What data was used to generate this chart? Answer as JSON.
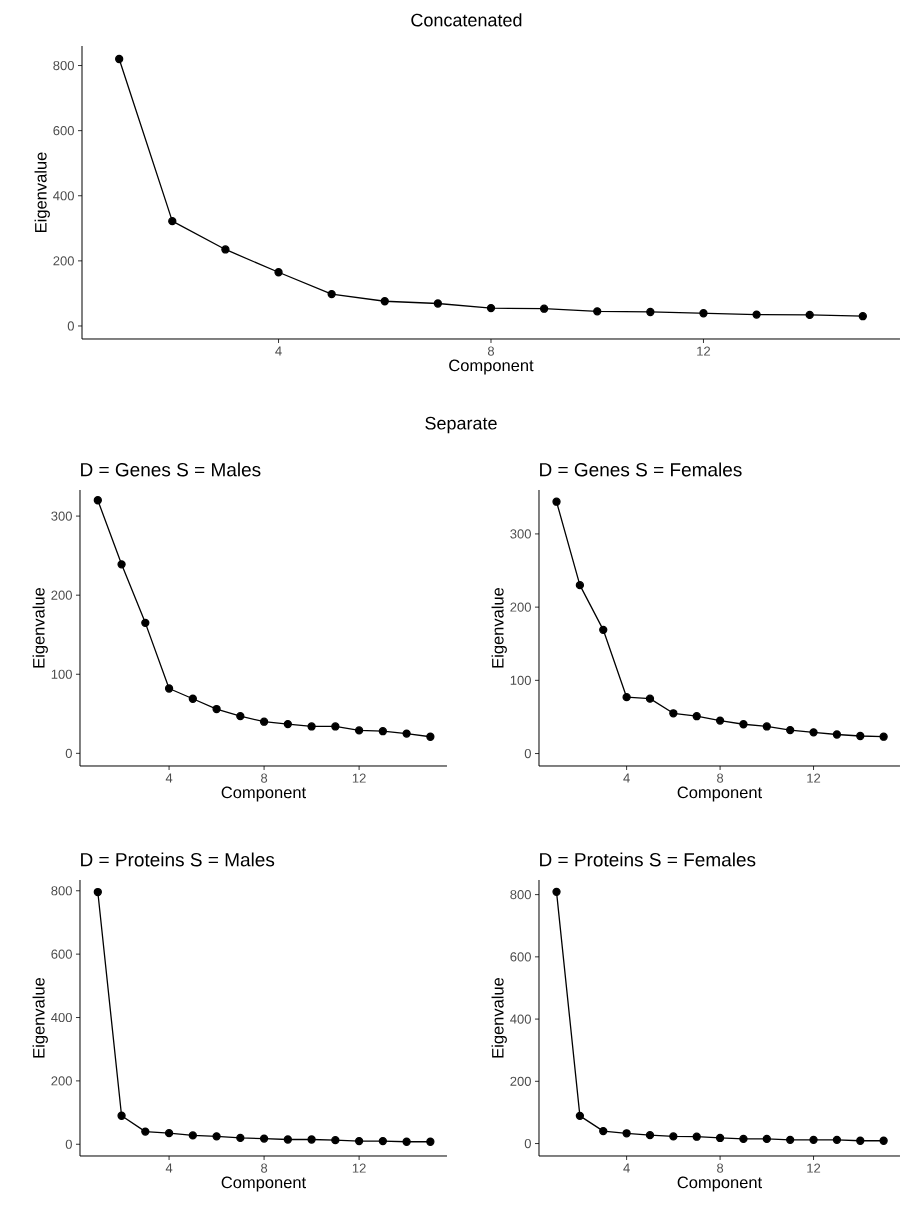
{
  "chart_data": [
    {
      "type": "line",
      "title": "Concatenated",
      "xlabel": "Component",
      "ylabel": "Eigenvalue",
      "x": [
        1,
        2,
        3,
        4,
        5,
        6,
        7,
        8,
        9,
        10,
        11,
        12,
        13,
        14,
        15
      ],
      "series": [
        {
          "color": "#000000",
          "values": [
            820,
            322,
            235,
            165,
            98,
            76,
            69,
            55,
            53,
            45,
            43,
            39,
            35,
            34,
            30
          ]
        }
      ],
      "xlim": [
        0.3,
        15.7
      ],
      "ylim": [
        -40,
        860
      ],
      "xticks": [
        4,
        8,
        12
      ],
      "yticks": [
        0,
        200,
        400,
        600,
        800
      ],
      "grid": false,
      "legend": false,
      "marker": "circle",
      "line_style": "solid"
    },
    {
      "type": "line",
      "title": "D = Genes S = Males",
      "subtitle": "Separate",
      "xlabel": "Component",
      "ylabel": "Eigenvalue",
      "x": [
        1,
        2,
        3,
        4,
        5,
        6,
        7,
        8,
        9,
        10,
        11,
        12,
        13,
        14,
        15
      ],
      "series": [
        {
          "color": "#000000",
          "values": [
            320,
            239,
            165,
            82,
            69,
            56,
            47,
            40,
            37,
            34,
            34,
            29,
            28,
            25,
            21
          ]
        }
      ],
      "xlim": [
        0.25,
        15.7
      ],
      "ylim": [
        -16,
        333
      ],
      "xticks": [
        4,
        8,
        12
      ],
      "yticks": [
        0,
        100,
        200,
        300
      ],
      "grid": false,
      "legend": false,
      "marker": "circle",
      "line_style": "solid"
    },
    {
      "type": "line",
      "title": "D = Genes S = Females",
      "xlabel": "Component",
      "ylabel": "Eigenvalue",
      "x": [
        1,
        2,
        3,
        4,
        5,
        6,
        7,
        8,
        9,
        10,
        11,
        12,
        13,
        14,
        15
      ],
      "series": [
        {
          "color": "#000000",
          "values": [
            344,
            230,
            169,
            77,
            75,
            55,
            51,
            45,
            40,
            37,
            32,
            29,
            26,
            24,
            23
          ]
        }
      ],
      "xlim": [
        0.25,
        15.7
      ],
      "ylim": [
        -17,
        360
      ],
      "xticks": [
        4,
        8,
        12
      ],
      "yticks": [
        0,
        100,
        200,
        300
      ],
      "grid": false,
      "legend": false,
      "marker": "circle",
      "line_style": "solid"
    },
    {
      "type": "line",
      "title": "D = Proteins S = Males",
      "xlabel": "Component",
      "ylabel": "Eigenvalue",
      "x": [
        1,
        2,
        3,
        4,
        5,
        6,
        7,
        8,
        9,
        10,
        11,
        12,
        13,
        14,
        15
      ],
      "series": [
        {
          "color": "#000000",
          "values": [
            796,
            90,
            40,
            35,
            28,
            25,
            20,
            18,
            15,
            15,
            13,
            10,
            10,
            8,
            8
          ]
        }
      ],
      "xlim": [
        0.25,
        15.7
      ],
      "ylim": [
        -37,
        834
      ],
      "xticks": [
        4,
        8,
        12
      ],
      "yticks": [
        0,
        200,
        400,
        600,
        800
      ],
      "grid": false,
      "legend": false,
      "marker": "circle",
      "line_style": "solid"
    },
    {
      "type": "line",
      "title": "D = Proteins S = Females",
      "xlabel": "Component",
      "ylabel": "Eigenvalue",
      "x": [
        1,
        2,
        3,
        4,
        5,
        6,
        7,
        8,
        9,
        10,
        11,
        12,
        13,
        14,
        15
      ],
      "series": [
        {
          "color": "#000000",
          "values": [
            809,
            89,
            40,
            33,
            27,
            23,
            22,
            18,
            15,
            15,
            12,
            12,
            12,
            9,
            9
          ]
        }
      ],
      "xlim": [
        0.25,
        15.7
      ],
      "ylim": [
        -40,
        847
      ],
      "xticks": [
        4,
        8,
        12
      ],
      "yticks": [
        0,
        200,
        400,
        600,
        800
      ],
      "grid": false,
      "legend": false,
      "marker": "circle",
      "line_style": "solid"
    }
  ]
}
